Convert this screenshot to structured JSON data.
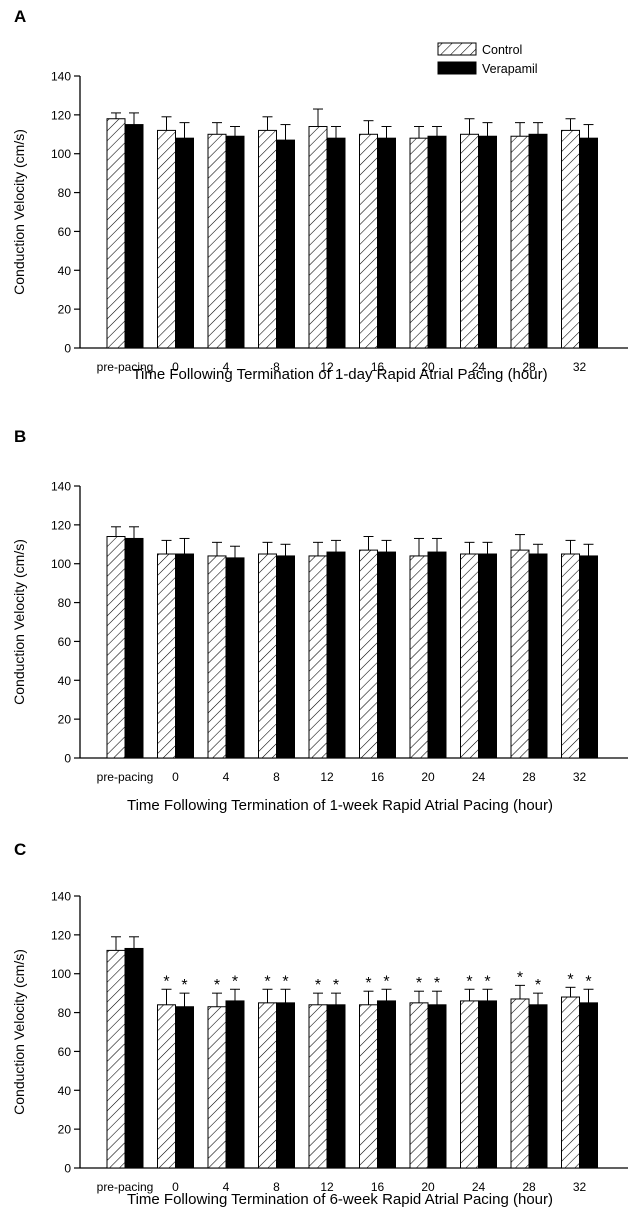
{
  "figure": {
    "legend": [
      {
        "label": "Control",
        "pattern": "hatched"
      },
      {
        "label": "Verapamil",
        "pattern": "solid"
      }
    ]
  },
  "chart_data": [
    {
      "panel": "A",
      "type": "bar",
      "categories": [
        "pre-pacing",
        "0",
        "4",
        "8",
        "12",
        "16",
        "20",
        "24",
        "28",
        "32"
      ],
      "series": [
        {
          "name": "Control",
          "values": [
            118,
            112,
            110,
            112,
            114,
            110,
            108,
            110,
            109,
            112
          ],
          "error": [
            3,
            7,
            6,
            7,
            9,
            7,
            6,
            8,
            7,
            6
          ]
        },
        {
          "name": "Verapamil",
          "values": [
            115,
            108,
            109,
            107,
            108,
            108,
            109,
            109,
            110,
            108
          ],
          "error": [
            6,
            8,
            5,
            8,
            6,
            6,
            5,
            7,
            6,
            7
          ]
        }
      ],
      "ylabel": "Conduction Velocity (cm/s)",
      "xlabel": "Time Following Termination of 1-day Rapid Atrial Pacing (hour)",
      "ylim": [
        0,
        140
      ],
      "yticks": [
        0,
        20,
        40,
        60,
        80,
        100,
        120,
        140
      ],
      "legend_position": "top-right"
    },
    {
      "panel": "B",
      "type": "bar",
      "categories": [
        "pre-pacing",
        "0",
        "4",
        "8",
        "12",
        "16",
        "20",
        "24",
        "28",
        "32"
      ],
      "series": [
        {
          "name": "Control",
          "values": [
            114,
            105,
            104,
            105,
            104,
            107,
            104,
            105,
            107,
            105
          ],
          "error": [
            5,
            7,
            7,
            6,
            7,
            7,
            9,
            6,
            8,
            7
          ]
        },
        {
          "name": "Verapamil",
          "values": [
            113,
            105,
            103,
            104,
            106,
            106,
            106,
            105,
            105,
            104
          ],
          "error": [
            6,
            8,
            6,
            6,
            6,
            6,
            7,
            6,
            5,
            6
          ]
        }
      ],
      "ylabel": "Conduction Velocity (cm/s)",
      "xlabel": "Time Following Termination of 1-week Rapid Atrial Pacing (hour)",
      "ylim": [
        0,
        140
      ],
      "yticks": [
        0,
        20,
        40,
        60,
        80,
        100,
        120,
        140
      ]
    },
    {
      "panel": "C",
      "type": "bar",
      "categories": [
        "pre-pacing",
        "0",
        "4",
        "8",
        "12",
        "16",
        "20",
        "24",
        "28",
        "32"
      ],
      "series": [
        {
          "name": "Control",
          "values": [
            112,
            84,
            83,
            85,
            84,
            84,
            85,
            86,
            87,
            88
          ],
          "error": [
            7,
            8,
            7,
            7,
            6,
            7,
            6,
            6,
            7,
            5
          ],
          "significant": [
            false,
            true,
            true,
            true,
            true,
            true,
            true,
            true,
            true,
            true
          ]
        },
        {
          "name": "Verapamil",
          "values": [
            113,
            83,
            86,
            85,
            84,
            86,
            84,
            86,
            84,
            85
          ],
          "error": [
            6,
            7,
            6,
            7,
            6,
            6,
            7,
            6,
            6,
            7
          ],
          "significant": [
            false,
            true,
            true,
            true,
            true,
            true,
            true,
            true,
            true,
            true
          ]
        }
      ],
      "significance_marker": "*",
      "ylabel": "Conduction Velocity (cm/s)",
      "xlabel": "Time Following Termination of 6-week Rapid Atrial Pacing (hour)",
      "ylim": [
        0,
        140
      ],
      "yticks": [
        0,
        20,
        40,
        60,
        80,
        100,
        120,
        140
      ]
    }
  ]
}
